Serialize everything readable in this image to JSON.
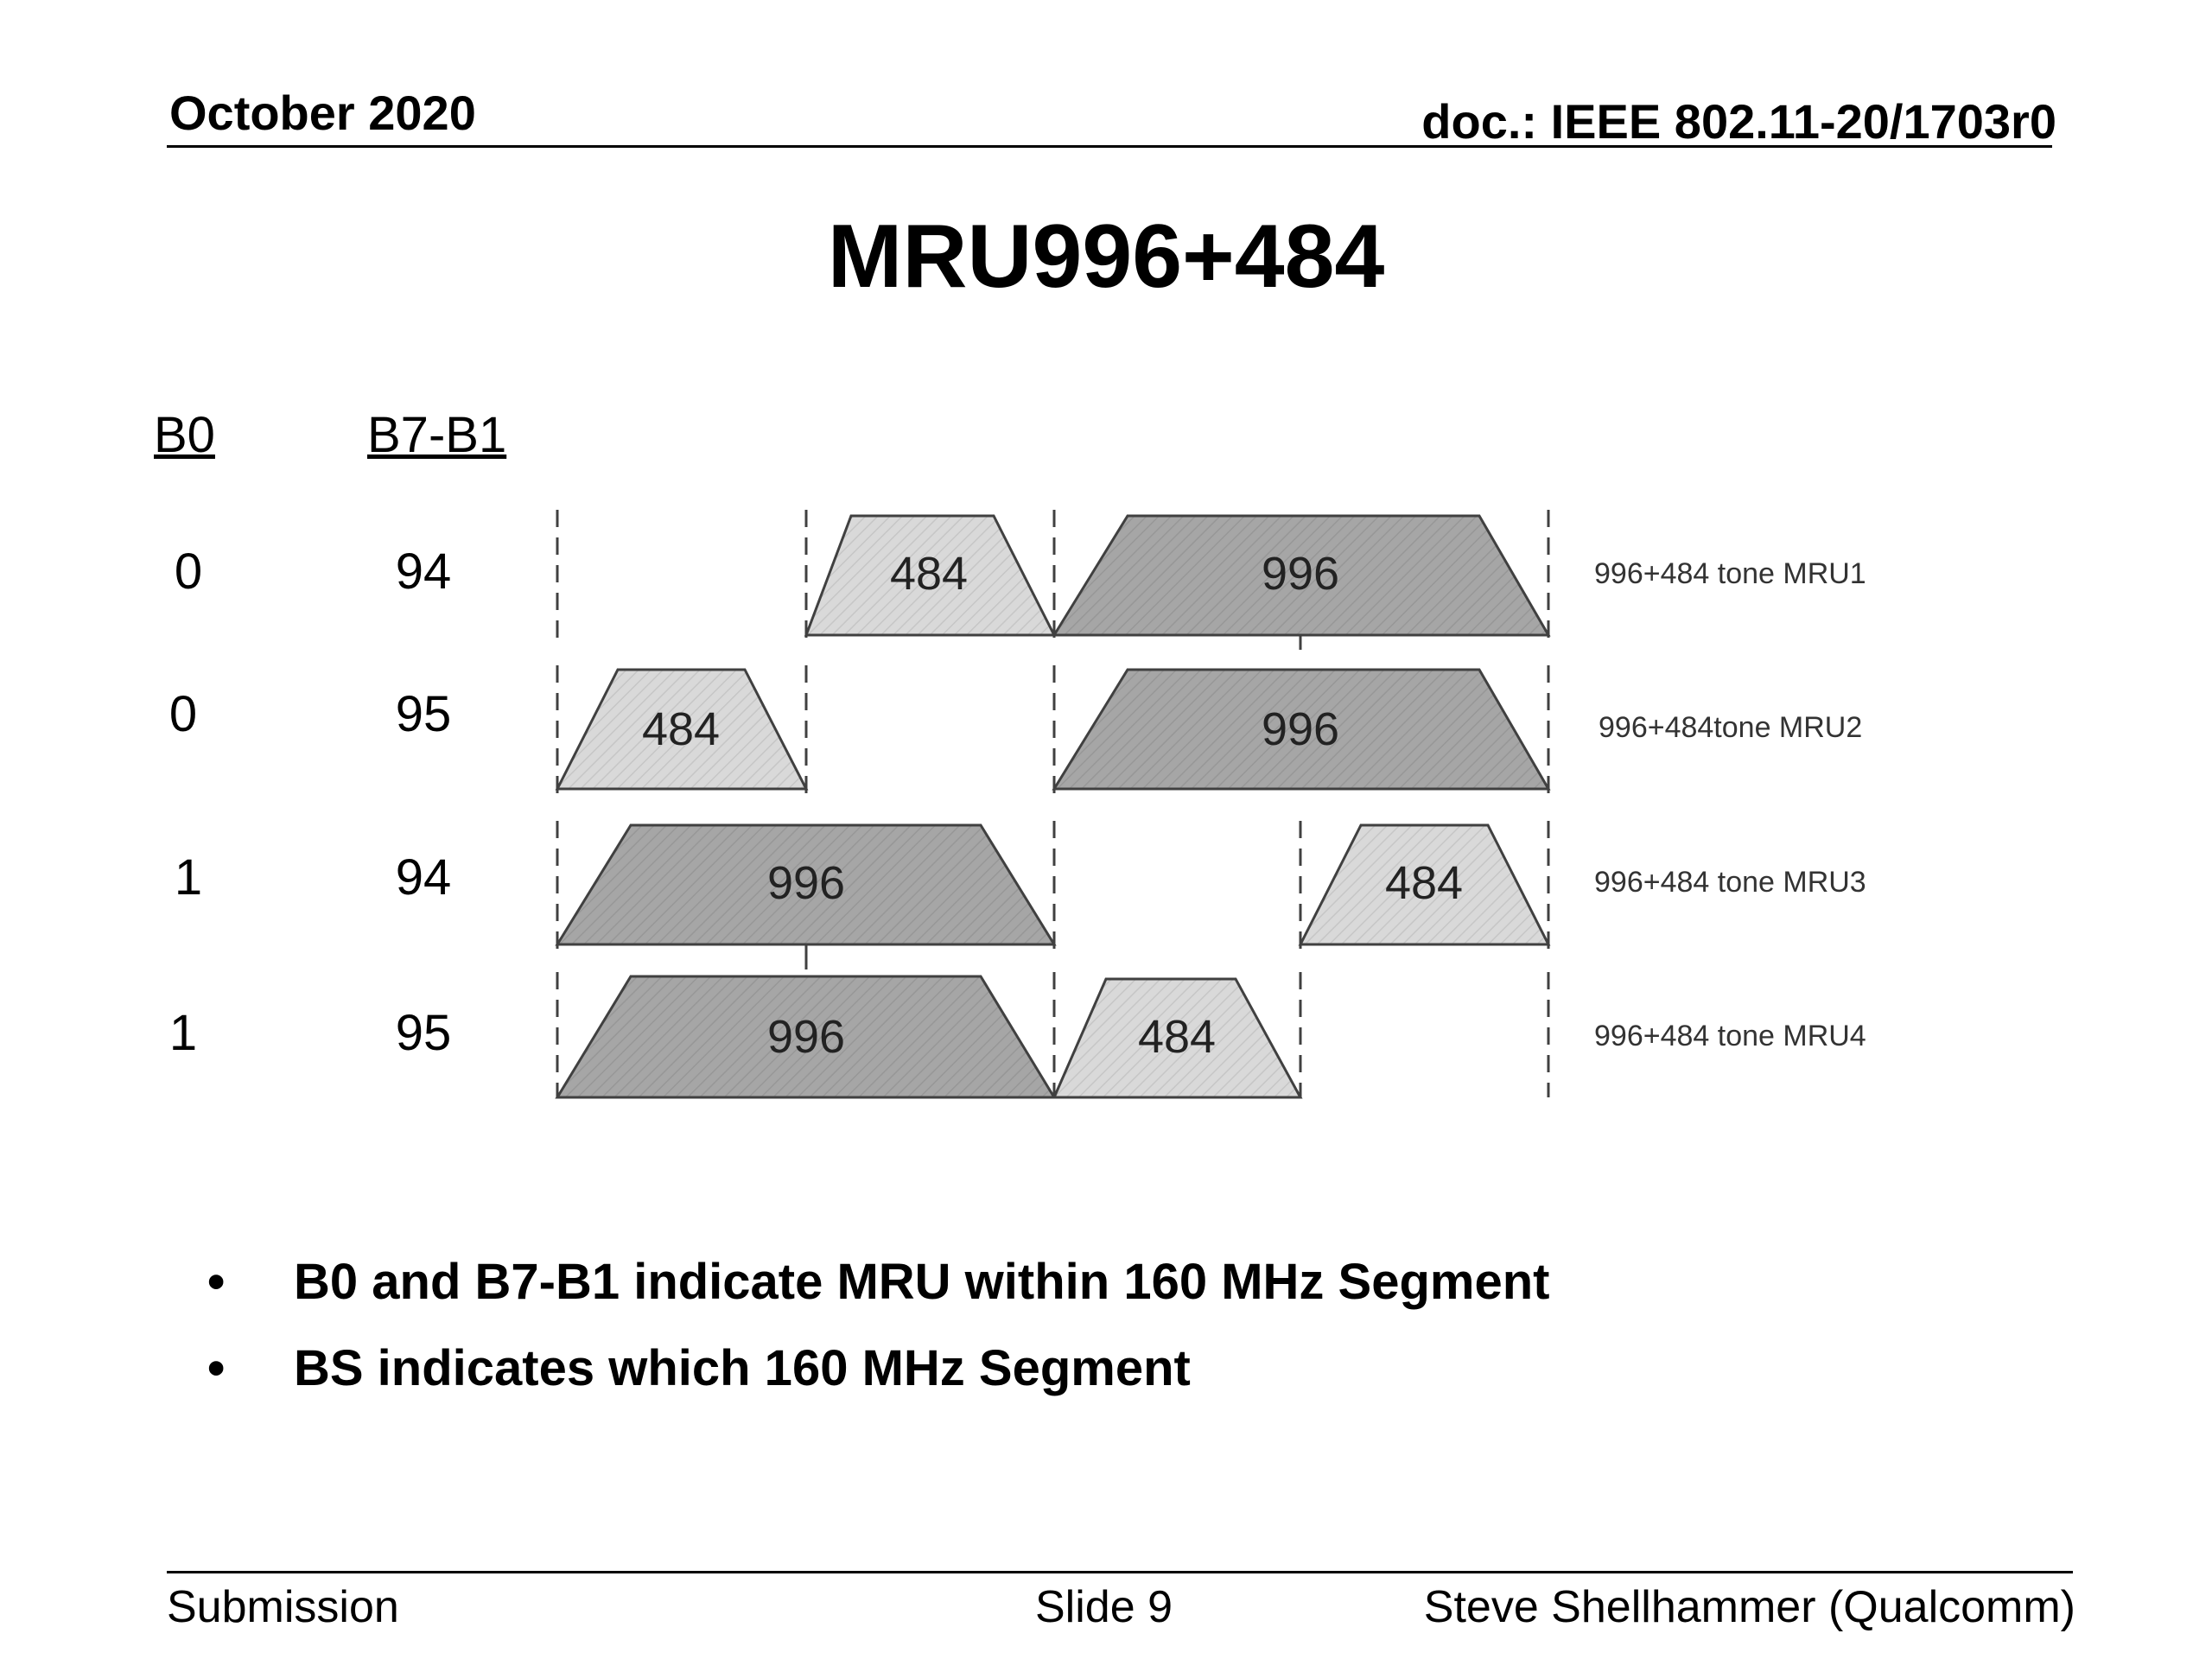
{
  "header": {
    "date": "October 2020",
    "doc": "doc.: IEEE 802.11-20/1703r0"
  },
  "title": "MRU996+484",
  "table": {
    "col_headers": [
      "B0",
      "B7-B1"
    ],
    "rows": [
      {
        "b0": "0",
        "b7b1": "94",
        "small": "484",
        "large": "996",
        "label": "996+484 tone MRU1"
      },
      {
        "b0": "0",
        "b7b1": "95",
        "small": "484",
        "large": "996",
        "label": "996+484tone MRU2"
      },
      {
        "b0": "1",
        "b7b1": "94",
        "small": "484",
        "large": "996",
        "label": "996+484 tone MRU3"
      },
      {
        "b0": "1",
        "b7b1": "95",
        "small": "484",
        "large": "996",
        "label": "996+484 tone MRU4"
      }
    ]
  },
  "bullets": [
    "B0 and B7-B1 indicate MRU within 160 MHz Segment",
    "BS indicates which 160 MHz Segment"
  ],
  "footer": {
    "left": "Submission",
    "center": "Slide 9",
    "right": "Steve Shellhammer (Qualcomm)"
  },
  "colors": {
    "small_ru_fill": "#d9d9d9",
    "large_ru_fill": "#a6a6a6",
    "outline": "#404040"
  }
}
